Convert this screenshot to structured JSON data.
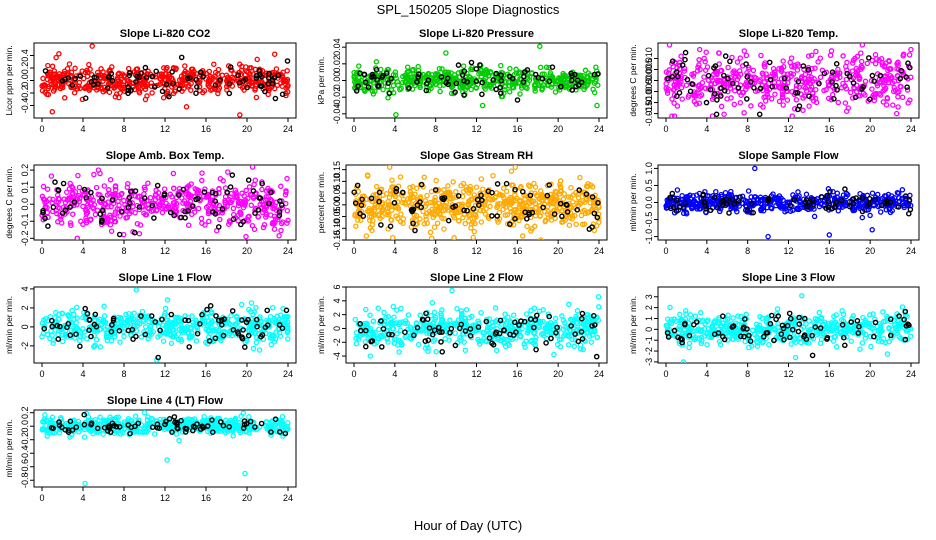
{
  "figure": {
    "title": "SPL_150205  Slope Diagnostics",
    "xlabel": "Hour of Day (UTC)"
  },
  "chart_data": [
    {
      "type": "scatter",
      "title": "Slope Li-820 CO2",
      "ylabel": "Licor ppm per min.",
      "xlim": [
        0,
        24
      ],
      "ylim": [
        -0.6,
        0.6
      ],
      "x_ticks": [
        0,
        4,
        8,
        12,
        16,
        20,
        24
      ],
      "y_ticks": [
        -0.4,
        -0.2,
        0.0,
        0.2,
        0.4
      ],
      "color": "#ff0000",
      "spread": 0.12,
      "outliers": [
        [
          4.9,
          0.55
        ],
        [
          1.0,
          -0.5
        ],
        [
          19.3,
          -0.55
        ],
        [
          14.1,
          -0.42
        ],
        [
          22.7,
          0.42
        ]
      ],
      "n": 500,
      "seed": 11
    },
    {
      "type": "scatter",
      "title": "Slope Li-820 Pressure",
      "ylabel": "kPa per min.",
      "xlim": [
        0,
        24
      ],
      "ylim": [
        -0.045,
        0.045
      ],
      "x_ticks": [
        0,
        4,
        8,
        12,
        16,
        20,
        24
      ],
      "y_ticks": [
        -0.04,
        -0.02,
        0.0,
        0.02,
        0.04
      ],
      "color": "#00cc00",
      "spread": 0.007,
      "outliers": [
        [
          4.1,
          -0.041
        ],
        [
          18.2,
          0.041
        ],
        [
          12.6,
          -0.03
        ],
        [
          23.8,
          -0.03
        ],
        [
          9.0,
          0.033
        ]
      ],
      "n": 500,
      "seed": 22
    },
    {
      "type": "scatter",
      "title": "Slope Li-820 Temp.",
      "ylabel": "degrees C per min.",
      "xlim": [
        0,
        24
      ],
      "ylim": [
        -0.017,
        0.017
      ],
      "x_ticks": [
        0,
        4,
        8,
        12,
        16,
        20,
        24
      ],
      "y_ticks": [
        -0.015,
        -0.01,
        -0.005,
        0.0,
        0.005,
        0.01
      ],
      "color": "#ff00ff",
      "spread": 0.006,
      "outliers": [
        [
          3.3,
          0.014
        ],
        [
          22.6,
          -0.015
        ],
        [
          9.5,
          -0.012
        ]
      ],
      "n": 500,
      "seed": 33
    },
    {
      "type": "scatter",
      "title": "Slope Amb. Box Temp.",
      "ylabel": "degrees C per min.",
      "xlim": [
        0,
        24
      ],
      "ylim": [
        -0.21,
        0.23
      ],
      "x_ticks": [
        0,
        4,
        8,
        12,
        16,
        20,
        24
      ],
      "y_ticks": [
        -0.2,
        -0.1,
        0.0,
        0.1,
        0.2
      ],
      "color": "#ff00ff",
      "spread": 0.07,
      "outliers": [
        [
          19.9,
          -0.19
        ],
        [
          5.5,
          0.2
        ],
        [
          23.9,
          0.15
        ]
      ],
      "n": 500,
      "seed": 44
    },
    {
      "type": "scatter",
      "title": "Slope Gas Stream RH",
      "ylabel": "percent per min.",
      "xlim": [
        0,
        24
      ],
      "ylim": [
        -0.15,
        0.17
      ],
      "x_ticks": [
        0,
        4,
        8,
        12,
        16,
        20,
        24
      ],
      "y_ticks": [
        -0.15,
        -0.1,
        -0.05,
        0.0,
        0.05,
        0.1,
        0.15
      ],
      "color": "#ffaa00",
      "spread": 0.05,
      "outliers": [
        [
          3.5,
          0.16
        ],
        [
          15.8,
          0.16
        ],
        [
          3.8,
          -0.14
        ],
        [
          18.3,
          -0.15
        ]
      ],
      "n": 600,
      "seed": 55
    },
    {
      "type": "scatter",
      "title": "Slope Sample Flow",
      "ylabel": "ml/min per min.",
      "xlim": [
        0,
        24
      ],
      "ylim": [
        -1.1,
        1.1
      ],
      "x_ticks": [
        0,
        4,
        8,
        12,
        16,
        20,
        24
      ],
      "y_ticks": [
        -1.0,
        -0.5,
        0.0,
        0.5,
        1.0
      ],
      "color": "#0000ff",
      "spread": 0.14,
      "outliers": [
        [
          8.7,
          1.0
        ],
        [
          10.0,
          -1.0
        ],
        [
          16.0,
          -0.95
        ],
        [
          20.2,
          -0.8
        ]
      ],
      "n": 500,
      "seed": 66
    },
    {
      "type": "scatter",
      "title": "Slope Line 1 Flow",
      "ylabel": "ml/min per min.",
      "xlim": [
        0,
        24
      ],
      "ylim": [
        -3.8,
        4.2
      ],
      "x_ticks": [
        0,
        4,
        8,
        12,
        16,
        20,
        24
      ],
      "y_ticks": [
        -2,
        0,
        2,
        4
      ],
      "color": "#00ffff",
      "spread": 0.9,
      "outliers": [
        [
          9.2,
          3.9
        ],
        [
          11.2,
          -3.5
        ]
      ],
      "n": 500,
      "seed": 77
    },
    {
      "type": "scatter",
      "title": "Slope Line 2 Flow",
      "ylabel": "ml/min per min.",
      "xlim": [
        0,
        24
      ],
      "ylim": [
        -5,
        6
      ],
      "x_ticks": [
        0,
        4,
        8,
        12,
        16,
        20,
        24
      ],
      "y_ticks": [
        -4,
        -2,
        0,
        2,
        4,
        6
      ],
      "color": "#00ffff",
      "spread": 1.3,
      "outliers": [
        [
          9.6,
          5.5
        ],
        [
          1.6,
          -4.0
        ]
      ],
      "n": 500,
      "seed": 88
    },
    {
      "type": "scatter",
      "title": "Slope Line 3 Flow",
      "ylabel": "ml/min per min.",
      "xlim": [
        0,
        24
      ],
      "ylim": [
        -3.1,
        3.9
      ],
      "x_ticks": [
        0,
        4,
        8,
        12,
        16,
        20,
        24
      ],
      "y_ticks": [
        -3,
        -2,
        -1,
        0,
        1,
        2,
        3
      ],
      "color": "#00ffff",
      "spread": 0.7,
      "outliers": [
        [
          1.7,
          -3.0
        ],
        [
          12.7,
          -2.6
        ],
        [
          13.3,
          3.1
        ]
      ],
      "n": 500,
      "seed": 99
    },
    {
      "type": "scatter",
      "title": "Slope Line 4 (LT) Flow",
      "ylabel": "ml/min per min.",
      "xlim": [
        0,
        24
      ],
      "ylim": [
        -0.9,
        0.24
      ],
      "x_ticks": [
        0,
        4,
        8,
        12,
        16,
        20,
        24
      ],
      "y_ticks": [
        -0.8,
        -0.6,
        -0.4,
        -0.2,
        0.0,
        0.2
      ],
      "color": "#00ffff",
      "spread": 0.06,
      "outliers": [
        [
          4.2,
          -0.85
        ],
        [
          12.2,
          -0.5
        ],
        [
          19.8,
          -0.7
        ],
        [
          10.0,
          0.2
        ]
      ],
      "n": 500,
      "seed": 111
    }
  ]
}
